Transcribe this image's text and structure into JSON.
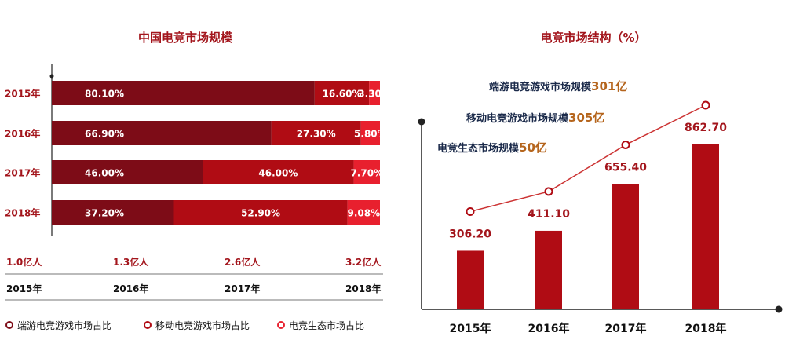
{
  "colors": {
    "dark": "#7d0c17",
    "mid": "#b00c14",
    "light": "#e8202e",
    "axis": "#222222",
    "label": "#a3151c",
    "bar": "#b00c14",
    "line": "#cc3333",
    "note_value": "#b5651d"
  },
  "chart_data": [
    {
      "type": "bar",
      "orientation": "horizontal",
      "stacked": true,
      "title": "中国电竞市场规模",
      "categories": [
        "2015年",
        "2016年",
        "2017年",
        "2018年"
      ],
      "series": [
        {
          "name": "端游电竞游戏市场占比",
          "values": [
            80.1,
            66.9,
            46.0,
            37.2
          ],
          "labels": [
            "80.10%",
            "66.90%",
            "46.00%",
            "37.20%"
          ]
        },
        {
          "name": "移动电竞游戏市场占比",
          "values": [
            16.6,
            27.3,
            46.0,
            52.9
          ],
          "labels": [
            "16.60%",
            "27.30%",
            "46.00%",
            "52.90%"
          ]
        },
        {
          "name": "电竞生态市场占比",
          "values": [
            3.3,
            5.8,
            7.7,
            9.08
          ],
          "labels": [
            "3.30%",
            "5.80%",
            "7.70%",
            "9.08%"
          ]
        }
      ],
      "xlim": [
        0,
        100
      ],
      "users_row": [
        "1.0亿人",
        "1.3亿人",
        "2.6亿人",
        "3.2亿人"
      ],
      "years_row": [
        "2015年",
        "2016年",
        "2017年",
        "2018年"
      ],
      "legend": [
        "端游电竞游戏市场占比",
        "移动电竞游戏市场占比",
        "电竞生态市场占比"
      ]
    },
    {
      "type": "bar",
      "title": "电竞市场结构（%）",
      "categories": [
        "2015年",
        "2016年",
        "2017年",
        "2018年"
      ],
      "values": [
        306.2,
        411.1,
        655.4,
        862.7
      ],
      "labels": [
        "306.20",
        "411.10",
        "655.40",
        "862.70"
      ],
      "ylim": [
        0,
        1000
      ],
      "overlay_line": true,
      "annotations": [
        {
          "text": "端游电竞游戏市场规模",
          "value": "301亿"
        },
        {
          "text": "移动电竞游戏市场规模",
          "value": "305亿"
        },
        {
          "text": "电竞生态市场规模",
          "value": "50亿"
        }
      ]
    }
  ]
}
